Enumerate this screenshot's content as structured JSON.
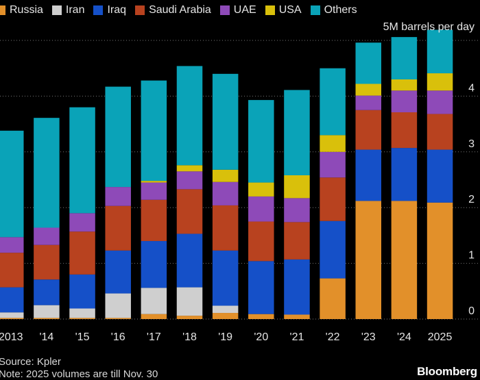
{
  "legend": [
    {
      "label": "Russia",
      "color": "#e2902a"
    },
    {
      "label": "Iran",
      "color": "#cfcfcf"
    },
    {
      "label": "Iraq",
      "color": "#1550c8"
    },
    {
      "label": "Saudi Arabia",
      "color": "#b8421f"
    },
    {
      "label": "UAE",
      "color": "#8e4ab8"
    },
    {
      "label": "USA",
      "color": "#d9c00b"
    },
    {
      "label": "Others",
      "color": "#0aa3b8"
    }
  ],
  "unit_label": "5M barrels per day",
  "source": "Source: Kpler",
  "note": "Note: 2025 volumes are till Nov. 30",
  "brand": "Bloomberg",
  "chart_data": {
    "type": "bar",
    "stacked": true,
    "title": "",
    "xlabel": "",
    "ylabel": "barrels per day",
    "ylim": [
      0,
      5
    ],
    "yticks": [
      "0",
      "1",
      "2",
      "3",
      "4",
      "5M"
    ],
    "categories": [
      "2013",
      "'14",
      "'15",
      "'16",
      "'17",
      "'18",
      "'19",
      "'20",
      "'21",
      "'22",
      "'23",
      "'24",
      "'25"
    ],
    "category_labels": [
      "2013",
      "'14",
      "'15",
      "'16",
      "'17",
      "'18",
      "'19",
      "'20",
      "'21",
      "'22",
      "'23",
      "'24",
      "2025"
    ],
    "series": [
      {
        "name": "Russia",
        "color": "#e2902a",
        "values": [
          0.02,
          0.02,
          0.02,
          0.02,
          0.09,
          0.06,
          0.11,
          0.09,
          0.08,
          0.73,
          2.12,
          2.12,
          2.09
        ]
      },
      {
        "name": "Iran",
        "color": "#cfcfcf",
        "values": [
          0.1,
          0.23,
          0.17,
          0.44,
          0.47,
          0.51,
          0.13,
          0.0,
          0.0,
          0.0,
          0.0,
          0.0,
          0.0
        ]
      },
      {
        "name": "Iraq",
        "color": "#1550c8",
        "values": [
          0.45,
          0.46,
          0.61,
          0.77,
          0.84,
          0.96,
          0.99,
          0.95,
          0.99,
          1.03,
          0.92,
          0.95,
          0.95
        ]
      },
      {
        "name": "Saudi Arabia",
        "color": "#b8421f",
        "values": [
          0.62,
          0.62,
          0.77,
          0.8,
          0.74,
          0.8,
          0.81,
          0.71,
          0.67,
          0.78,
          0.71,
          0.64,
          0.64
        ]
      },
      {
        "name": "UAE",
        "color": "#8e4ab8",
        "values": [
          0.28,
          0.31,
          0.33,
          0.34,
          0.31,
          0.32,
          0.42,
          0.45,
          0.43,
          0.46,
          0.26,
          0.39,
          0.42
        ]
      },
      {
        "name": "USA",
        "color": "#d9c00b",
        "values": [
          0.0,
          0.0,
          0.0,
          0.0,
          0.03,
          0.11,
          0.22,
          0.25,
          0.41,
          0.3,
          0.21,
          0.2,
          0.31
        ]
      },
      {
        "name": "Others",
        "color": "#0aa3b8",
        "values": [
          1.91,
          1.97,
          1.9,
          1.8,
          1.8,
          1.78,
          1.72,
          1.48,
          1.53,
          1.2,
          0.74,
          0.76,
          0.78
        ]
      }
    ]
  }
}
